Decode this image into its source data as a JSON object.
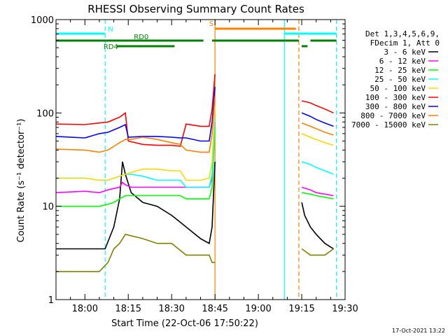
{
  "chart_data": {
    "type": "line",
    "title": "RHESSI Observing Summary Count Rates",
    "xlabel": "Start Time (22-Oct-06 17:50:22)",
    "ylabel": "Count Rate (s⁻¹ detector⁻¹)",
    "x_unit": "UT time on 22-Oct-2006",
    "xlim": [
      "17:50",
      "19:30"
    ],
    "ylim": [
      1,
      1000
    ],
    "y_scale": "log",
    "x_ticks": [
      "18:00",
      "18:15",
      "18:30",
      "18:45",
      "19:00",
      "19:15",
      "19:30"
    ],
    "y_ticks": [
      "1",
      "10",
      "100",
      "1000"
    ],
    "legend_header": [
      "Det 1,3,4,5,6,9,",
      "FDecim 1, Att 0"
    ],
    "legend_position": "right",
    "footer_stamp": "17-Oct-2021 13:22",
    "gaps": [
      [
        "18:45",
        "19:08"
      ]
    ],
    "series": [
      {
        "name": "3 - 6 keV",
        "color": "#000000",
        "points": [
          [
            "17:50",
            3.5
          ],
          [
            "18:00",
            3.5
          ],
          [
            "18:07",
            3.5
          ],
          [
            "18:10",
            6
          ],
          [
            "18:12",
            12
          ],
          [
            "18:13",
            30
          ],
          [
            "18:14",
            22
          ],
          [
            "18:16",
            14
          ],
          [
            "18:20",
            11
          ],
          [
            "18:25",
            10
          ],
          [
            "18:30",
            8
          ],
          [
            "18:35",
            6
          ],
          [
            "18:40",
            4.5
          ],
          [
            "18:43",
            4
          ],
          [
            "18:44",
            6
          ],
          [
            "18:45",
            30
          ]
        ],
        "points2": [
          [
            "19:15",
            11
          ],
          [
            "19:16",
            8
          ],
          [
            "19:18",
            6
          ],
          [
            "19:20",
            5
          ],
          [
            "19:23",
            4
          ],
          [
            "19:26",
            3.5
          ]
        ]
      },
      {
        "name": "6 - 12 keV",
        "color": "#ff00ff",
        "points": [
          [
            "17:50",
            14
          ],
          [
            "18:00",
            14.5
          ],
          [
            "18:05",
            14
          ],
          [
            "18:08",
            15
          ],
          [
            "18:10",
            15.5
          ],
          [
            "18:12",
            16
          ],
          [
            "18:13",
            18
          ],
          [
            "18:14",
            17
          ],
          [
            "18:16",
            16
          ],
          [
            "18:20",
            16
          ],
          [
            "18:25",
            16
          ],
          [
            "18:30",
            16
          ],
          [
            "18:35",
            16
          ],
          [
            "18:40",
            16
          ],
          [
            "18:43",
            16
          ],
          [
            "18:44",
            20
          ],
          [
            "18:45",
            80
          ]
        ],
        "points2": [
          [
            "19:15",
            16
          ],
          [
            "19:18",
            15
          ],
          [
            "19:20",
            14
          ],
          [
            "19:23",
            13.5
          ],
          [
            "19:26",
            13
          ]
        ]
      },
      {
        "name": "12 - 25 keV",
        "color": "#00ff00",
        "points": [
          [
            "17:50",
            10
          ],
          [
            "18:00",
            10
          ],
          [
            "18:05",
            10
          ],
          [
            "18:08",
            10.5
          ],
          [
            "18:10",
            11
          ],
          [
            "18:12",
            12
          ],
          [
            "18:14",
            13
          ],
          [
            "18:16",
            13
          ],
          [
            "18:20",
            13
          ],
          [
            "18:25",
            13
          ],
          [
            "18:30",
            13
          ],
          [
            "18:33",
            13
          ],
          [
            "18:35",
            12
          ],
          [
            "18:40",
            12
          ],
          [
            "18:43",
            12
          ],
          [
            "18:44",
            16
          ],
          [
            "18:45",
            70
          ]
        ],
        "points2": [
          [
            "19:15",
            14
          ],
          [
            "19:18",
            13.5
          ],
          [
            "19:20",
            13
          ],
          [
            "19:23",
            12.5
          ],
          [
            "19:26",
            12
          ]
        ]
      },
      {
        "name": "25 - 50 keV",
        "color": "#00ffff",
        "points": [
          [
            "17:50",
            20
          ],
          [
            "18:00",
            20
          ],
          [
            "18:05",
            19
          ],
          [
            "18:08",
            19
          ],
          [
            "18:12",
            21
          ],
          [
            "18:14",
            22
          ],
          [
            "18:16",
            22
          ],
          [
            "18:20",
            21
          ],
          [
            "18:25",
            19
          ],
          [
            "18:30",
            19
          ],
          [
            "18:33",
            19
          ],
          [
            "18:35",
            16
          ],
          [
            "18:40",
            16
          ],
          [
            "18:43",
            16
          ],
          [
            "18:44",
            22
          ],
          [
            "18:45",
            90
          ]
        ],
        "points2": [
          [
            "19:15",
            30
          ],
          [
            "19:18",
            28
          ],
          [
            "19:20",
            26
          ],
          [
            "19:23",
            24
          ],
          [
            "19:26",
            22
          ]
        ]
      },
      {
        "name": "50 - 100 keV",
        "color": "#ffd700",
        "points": [
          [
            "17:50",
            20
          ],
          [
            "18:00",
            20
          ],
          [
            "18:05",
            19
          ],
          [
            "18:08",
            19
          ],
          [
            "18:12",
            21
          ],
          [
            "18:14",
            22
          ],
          [
            "18:16",
            23
          ],
          [
            "18:20",
            25
          ],
          [
            "18:25",
            25
          ],
          [
            "18:30",
            24
          ],
          [
            "18:33",
            24
          ],
          [
            "18:35",
            19
          ],
          [
            "18:40",
            19
          ],
          [
            "18:43",
            20
          ],
          [
            "18:44",
            30
          ],
          [
            "18:45",
            120
          ]
        ],
        "points2": [
          [
            "19:15",
            60
          ],
          [
            "19:18",
            55
          ],
          [
            "19:20",
            52
          ],
          [
            "19:23",
            48
          ],
          [
            "19:26",
            45
          ]
        ]
      },
      {
        "name": "100 - 300 keV",
        "color": "#ff0000",
        "points": [
          [
            "17:50",
            76
          ],
          [
            "18:00",
            75
          ],
          [
            "18:05",
            78
          ],
          [
            "18:08",
            80
          ],
          [
            "18:12",
            90
          ],
          [
            "18:14",
            100
          ],
          [
            "18:15",
            50
          ],
          [
            "18:20",
            46
          ],
          [
            "18:25",
            45
          ],
          [
            "18:30",
            45
          ],
          [
            "18:33",
            44
          ],
          [
            "18:35",
            76
          ],
          [
            "18:40",
            72
          ],
          [
            "18:43",
            72
          ],
          [
            "18:44",
            110
          ],
          [
            "18:45",
            260
          ]
        ],
        "points2": [
          [
            "19:15",
            135
          ],
          [
            "19:18",
            128
          ],
          [
            "19:20",
            120
          ],
          [
            "19:23",
            110
          ],
          [
            "19:26",
            100
          ]
        ]
      },
      {
        "name": "300 - 800 keV",
        "color": "#0000ff",
        "points": [
          [
            "17:50",
            56
          ],
          [
            "18:00",
            54
          ],
          [
            "18:05",
            60
          ],
          [
            "18:08",
            62
          ],
          [
            "18:12",
            70
          ],
          [
            "18:14",
            75
          ],
          [
            "18:15",
            55
          ],
          [
            "18:20",
            56
          ],
          [
            "18:25",
            56
          ],
          [
            "18:30",
            55
          ],
          [
            "18:33",
            54
          ],
          [
            "18:35",
            54
          ],
          [
            "18:40",
            50
          ],
          [
            "18:43",
            50
          ],
          [
            "18:44",
            80
          ],
          [
            "18:45",
            190
          ]
        ],
        "points2": [
          [
            "19:15",
            100
          ],
          [
            "19:18",
            92
          ],
          [
            "19:20",
            85
          ],
          [
            "19:23",
            78
          ],
          [
            "19:26",
            72
          ]
        ]
      },
      {
        "name": "800 - 7000 keV",
        "color": "#ff8000",
        "points": [
          [
            "17:50",
            41
          ],
          [
            "18:00",
            40
          ],
          [
            "18:05",
            38
          ],
          [
            "18:08",
            40
          ],
          [
            "18:12",
            48
          ],
          [
            "18:14",
            52
          ],
          [
            "18:16",
            52
          ],
          [
            "18:20",
            55
          ],
          [
            "18:25",
            52
          ],
          [
            "18:30",
            48
          ],
          [
            "18:33",
            46
          ],
          [
            "18:35",
            40
          ],
          [
            "18:40",
            38
          ],
          [
            "18:43",
            38
          ],
          [
            "18:44",
            60
          ],
          [
            "18:45",
            150
          ]
        ],
        "points2": [
          [
            "19:15",
            78
          ],
          [
            "19:18",
            72
          ],
          [
            "19:20",
            68
          ],
          [
            "19:23",
            62
          ],
          [
            "19:26",
            58
          ]
        ]
      },
      {
        "name": "7000 - 15000 keV",
        "color": "#808000",
        "points": [
          [
            "17:50",
            2
          ],
          [
            "18:00",
            2
          ],
          [
            "18:05",
            2
          ],
          [
            "18:08",
            2.5
          ],
          [
            "18:10",
            3.5
          ],
          [
            "18:12",
            4
          ],
          [
            "18:14",
            5
          ],
          [
            "18:20",
            4.5
          ],
          [
            "18:25",
            4
          ],
          [
            "18:30",
            4
          ],
          [
            "18:35",
            3
          ],
          [
            "18:40",
            3
          ],
          [
            "18:43",
            3
          ],
          [
            "18:44",
            2.5
          ],
          [
            "18:45",
            2.5
          ]
        ],
        "points2": [
          [
            "19:15",
            3.5
          ],
          [
            "19:18",
            3
          ],
          [
            "19:20",
            3
          ],
          [
            "19:23",
            3
          ],
          [
            "19:26",
            3.5
          ]
        ]
      }
    ],
    "annotations": [
      {
        "label": "N",
        "color": "#00ffff",
        "segments": [
          [
            "17:50",
            "18:07"
          ],
          [
            "19:09",
            "19:27"
          ]
        ],
        "level": 0.95
      },
      {
        "label": "RD0",
        "color": "#008000",
        "segments": [
          [
            "17:50",
            "18:41"
          ],
          [
            "18:44",
            "19:14"
          ],
          [
            "19:18",
            "19:27"
          ]
        ],
        "level": 0.91
      },
      {
        "label": "RD4",
        "color": "#008000",
        "segments": [
          [
            "18:11",
            "18:31"
          ],
          [
            "19:15",
            "19:17"
          ]
        ],
        "level": 0.905
      },
      {
        "label": "S",
        "color": "#ff8000",
        "segments": [
          [
            "18:45",
            "19:13"
          ]
        ],
        "level": 0.97
      }
    ],
    "vlines": [
      {
        "time": "18:07",
        "color": "#00ffff",
        "style": "dashed"
      },
      {
        "time": "18:45",
        "color": "#ff8000",
        "style": "solid"
      },
      {
        "time": "19:09",
        "color": "#00ffff",
        "style": "solid"
      },
      {
        "time": "19:14",
        "color": "#ff8000",
        "style": "dashed"
      },
      {
        "time": "19:27",
        "color": "#00ffff",
        "style": "dashed"
      }
    ]
  }
}
